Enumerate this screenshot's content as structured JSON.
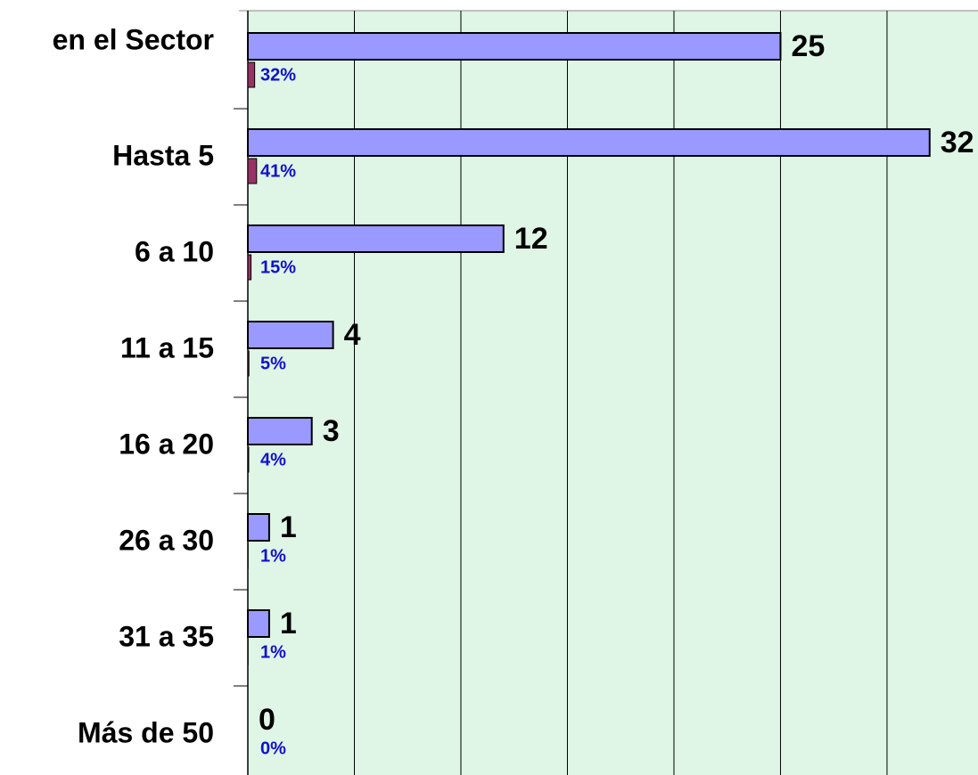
{
  "chart_data": {
    "type": "bar",
    "orientation": "horizontal",
    "categories": [
      "en el Sector",
      "Hasta 5",
      "6 a 10",
      "11 a 15",
      "16 a 20",
      "26 a 30",
      "31 a 35",
      "Más de 50"
    ],
    "series": [
      {
        "color": "#9999ff",
        "values": [
          25,
          32,
          12,
          4,
          3,
          1,
          1,
          0
        ]
      },
      {
        "color": "#993366",
        "values": [
          0.32,
          0.41,
          0.15,
          0.05,
          0.04,
          0.01,
          0.01,
          0
        ],
        "value_labels": [
          "32%",
          "41%",
          "15%",
          "5%",
          "4%",
          "1%",
          "1%",
          "0%"
        ]
      }
    ],
    "xlim": [
      0,
      34.27
    ],
    "xticks": [
      0,
      5,
      10,
      15,
      20,
      25,
      30
    ],
    "grid": true,
    "background": "#dff5e6"
  }
}
